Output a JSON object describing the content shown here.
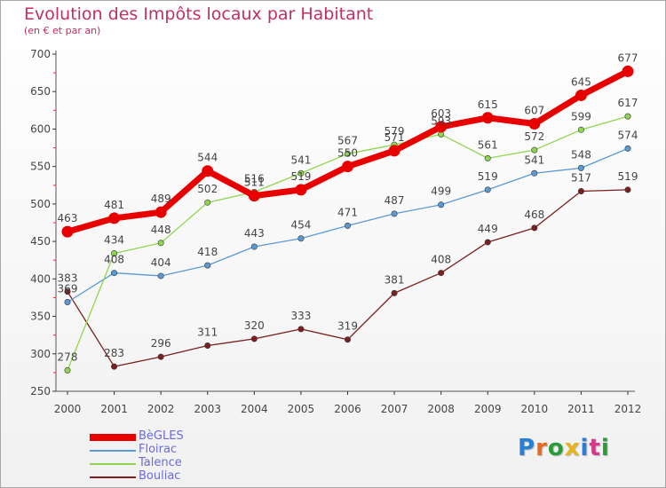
{
  "header": {
    "title": "Evolution des Impôts locaux par Habitant",
    "subtitle": "(en € et par an)"
  },
  "brand": {
    "letters": [
      "P",
      "r",
      "o",
      "x",
      "i",
      "t",
      "i"
    ],
    "colors": [
      "#2a7fd4",
      "#e86a1c",
      "#2a9a3a",
      "#e8b41c",
      "#2a7fd4",
      "#d43a8a",
      "#2a9a3a"
    ]
  },
  "colors": {
    "axis": "#555555",
    "grid_tick": "#333333",
    "minor_tick": "#e03040",
    "label": "#444444"
  },
  "chart_data": {
    "type": "line",
    "title": "Evolution des Impôts locaux par Habitant",
    "subtitle": "(en € et par an)",
    "xlabel": "",
    "ylabel": "",
    "categories": [
      "2000",
      "2001",
      "2002",
      "2003",
      "2004",
      "2005",
      "2006",
      "2007",
      "2008",
      "2009",
      "2010",
      "2011",
      "2012"
    ],
    "ylim": [
      250,
      700
    ],
    "yticks": [
      250,
      300,
      350,
      400,
      450,
      500,
      550,
      600,
      650,
      700
    ],
    "legend_position": "bottom-left",
    "series": [
      {
        "name": "Bouliac",
        "color": "#7a1e1e",
        "weight": "thin",
        "values": [
          383,
          283,
          296,
          311,
          320,
          333,
          319,
          381,
          408,
          449,
          468,
          517,
          519
        ]
      },
      {
        "name": "Floirac",
        "color": "#5a9ad4",
        "weight": "thin",
        "values": [
          369,
          408,
          404,
          418,
          443,
          454,
          471,
          487,
          499,
          519,
          541,
          548,
          574
        ]
      },
      {
        "name": "Talence",
        "color": "#8fd650",
        "weight": "thin",
        "values": [
          278,
          434,
          448,
          502,
          516,
          541,
          567,
          579,
          593,
          561,
          572,
          599,
          617
        ]
      },
      {
        "name": "BèGLES",
        "color": "#e80000",
        "weight": "thick",
        "values": [
          463,
          481,
          489,
          544,
          511,
          519,
          550,
          571,
          603,
          615,
          607,
          645,
          677
        ]
      }
    ],
    "legend_order": [
      "BèGLES",
      "Floirac",
      "Talence",
      "Bouliac"
    ]
  }
}
